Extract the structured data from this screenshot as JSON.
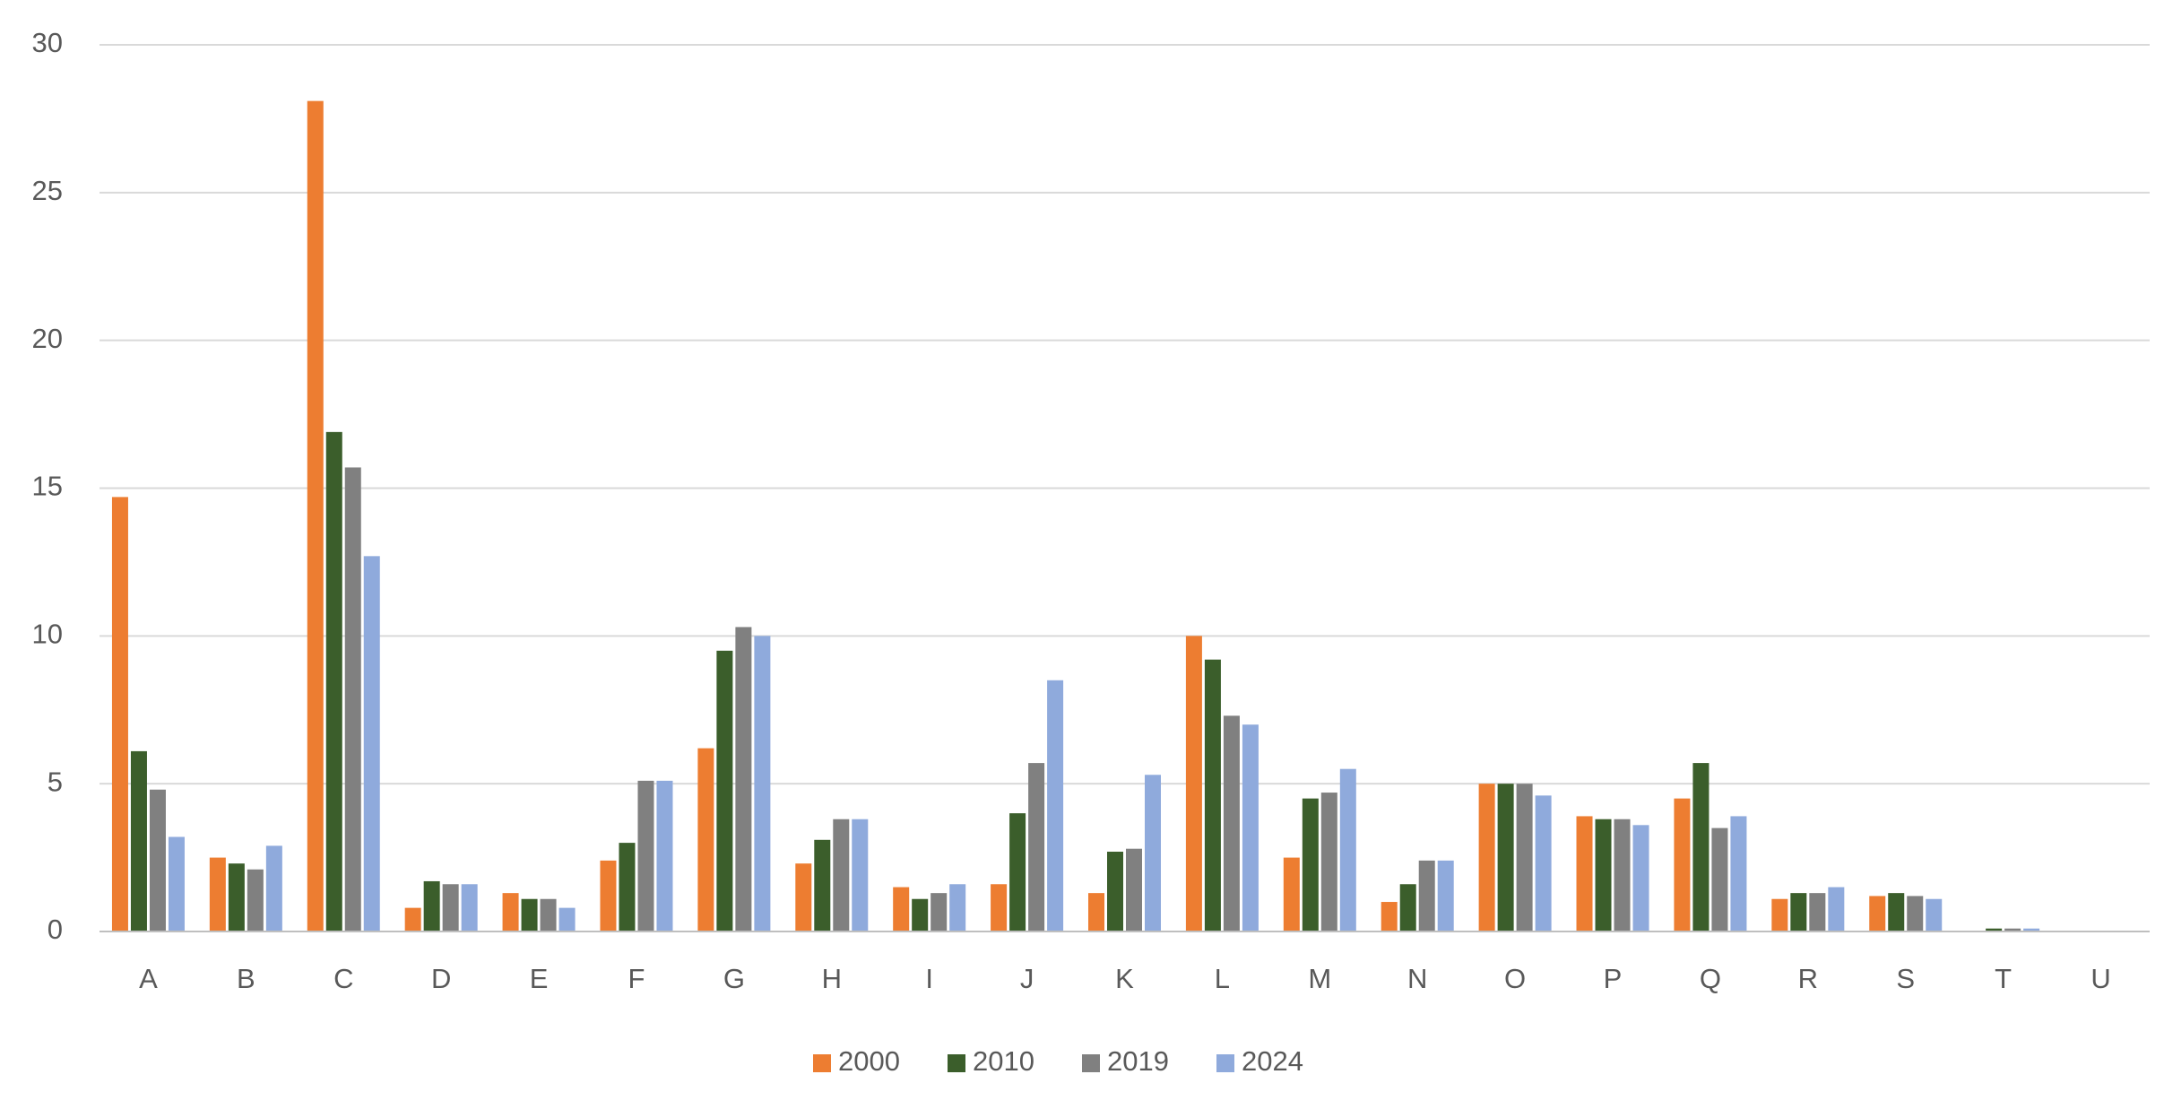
{
  "chart_data": {
    "type": "bar",
    "categories": [
      "A",
      "B",
      "C",
      "D",
      "E",
      "F",
      "G",
      "H",
      "I",
      "J",
      "K",
      "L",
      "M",
      "N",
      "O",
      "P",
      "Q",
      "R",
      "S",
      "T",
      "U"
    ],
    "series": [
      {
        "name": "2000",
        "color": "#ed7d31",
        "values": [
          14.7,
          2.5,
          28.1,
          0.8,
          1.3,
          2.4,
          6.2,
          2.3,
          1.5,
          1.6,
          1.3,
          10.0,
          2.5,
          1.0,
          5.0,
          3.9,
          4.5,
          1.1,
          1.2,
          0,
          0
        ]
      },
      {
        "name": "2010",
        "color": "#3b5e2b",
        "values": [
          6.1,
          2.3,
          16.9,
          1.7,
          1.1,
          3.0,
          9.5,
          3.1,
          1.1,
          4.0,
          2.7,
          9.2,
          4.5,
          1.6,
          5.0,
          3.8,
          5.7,
          1.3,
          1.3,
          0.1,
          0
        ]
      },
      {
        "name": "2019",
        "color": "#808080",
        "values": [
          4.8,
          2.1,
          15.7,
          1.6,
          1.1,
          5.1,
          10.3,
          3.8,
          1.3,
          5.7,
          2.8,
          7.3,
          4.7,
          2.4,
          5.0,
          3.8,
          3.5,
          1.3,
          1.2,
          0.1,
          0
        ]
      },
      {
        "name": "2024",
        "color": "#8faadc",
        "values": [
          3.2,
          2.9,
          12.7,
          1.6,
          0.8,
          5.1,
          10.0,
          3.8,
          1.6,
          8.5,
          5.3,
          7.0,
          5.5,
          2.4,
          4.6,
          3.6,
          3.9,
          1.5,
          1.1,
          0.1,
          0
        ]
      }
    ],
    "ylim": [
      0,
      30
    ],
    "yticks": [
      0,
      5,
      10,
      15,
      20,
      25,
      30
    ],
    "grid": true,
    "legend": "bottom"
  }
}
